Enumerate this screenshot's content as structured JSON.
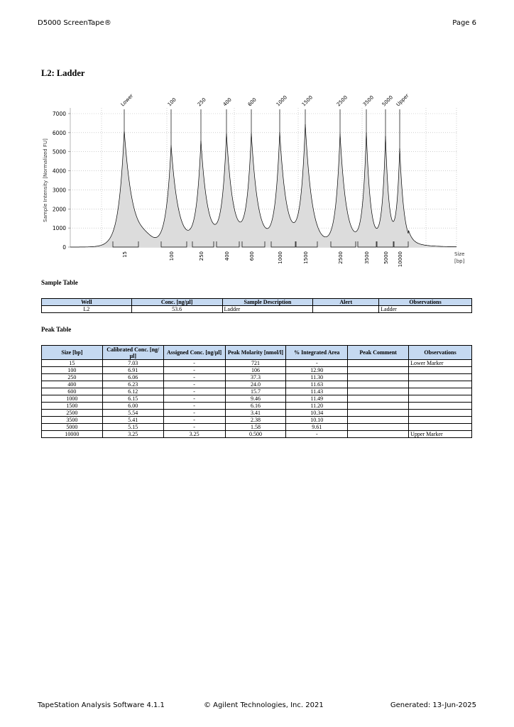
{
  "header": {
    "title": "D5000 ScreenTape®",
    "page": "Page 6"
  },
  "section_title": "L2: Ladder",
  "chart_data": {
    "type": "line",
    "ylabel": "Sample Intensity [Normalized FU]",
    "xlabel": "Size\n[bp]",
    "xlabel_line1": "Size",
    "xlabel_line2": "[bp]",
    "ylim": [
      0,
      7000
    ],
    "yticks": [
      0,
      1000,
      2000,
      3000,
      4000,
      5000,
      6000,
      7000
    ],
    "grid": true,
    "peaks": [
      {
        "label": "Lower",
        "size": "15",
        "intensity": 6100
      },
      {
        "label": "100",
        "size": "100",
        "intensity": 5300
      },
      {
        "label": "250",
        "size": "250",
        "intensity": 5450
      },
      {
        "label": "400",
        "size": "400",
        "intensity": 5800
      },
      {
        "label": "600",
        "size": "600",
        "intensity": 5800
      },
      {
        "label": "1000",
        "size": "1000",
        "intensity": 5900
      },
      {
        "label": "1500",
        "size": "1500",
        "intensity": 6300
      },
      {
        "label": "2500",
        "size": "2500",
        "intensity": 5900
      },
      {
        "label": "3500",
        "size": "3500",
        "intensity": 5900
      },
      {
        "label": "5000",
        "size": "5000",
        "intensity": 5700
      },
      {
        "label": "Upper",
        "size": "10000",
        "intensity": 5050
      }
    ]
  },
  "sample_table": {
    "title": "Sample Table",
    "headers": [
      "Well",
      "Conc. [ng/µl]",
      "Sample Description",
      "Alert",
      "Observations"
    ],
    "rows": [
      [
        "L2",
        "53.6",
        "Ladder",
        "",
        "Ladder"
      ]
    ]
  },
  "peak_table": {
    "title": "Peak Table",
    "headers": [
      "Size [bp]",
      "Calibrated Conc. [ng/µl]",
      "Assigned Conc. [ng/µl]",
      "Peak Molarity [nmol/l]",
      "% Integrated Area",
      "Peak Comment",
      "Observations"
    ],
    "rows": [
      [
        "15",
        "7.03",
        "-",
        "721",
        "-",
        "",
        "Lower Marker"
      ],
      [
        "100",
        "6.91",
        "-",
        "106",
        "12.90",
        "",
        ""
      ],
      [
        "250",
        "6.06",
        "-",
        "37.3",
        "11.30",
        "",
        ""
      ],
      [
        "400",
        "6.23",
        "-",
        "24.0",
        "11.63",
        "",
        ""
      ],
      [
        "600",
        "6.12",
        "-",
        "15.7",
        "11.43",
        "",
        ""
      ],
      [
        "1000",
        "6.15",
        "-",
        "9.46",
        "11.49",
        "",
        ""
      ],
      [
        "1500",
        "6.00",
        "-",
        "6.16",
        "11.20",
        "",
        ""
      ],
      [
        "2500",
        "5.54",
        "-",
        "3.41",
        "10.34",
        "",
        ""
      ],
      [
        "3500",
        "5.41",
        "-",
        "2.38",
        "10.10",
        "",
        ""
      ],
      [
        "5000",
        "5.15",
        "-",
        "1.58",
        "9.61",
        "",
        ""
      ],
      [
        "10000",
        "3.25",
        "3.25",
        "0.500",
        "-",
        "",
        "Upper Marker"
      ]
    ]
  },
  "footer": {
    "software": "TapeStation Analysis Software 4.1.1",
    "copyright": "© Agilent Technologies, Inc. 2021",
    "generated": "Generated: 13-Jun-2025"
  }
}
